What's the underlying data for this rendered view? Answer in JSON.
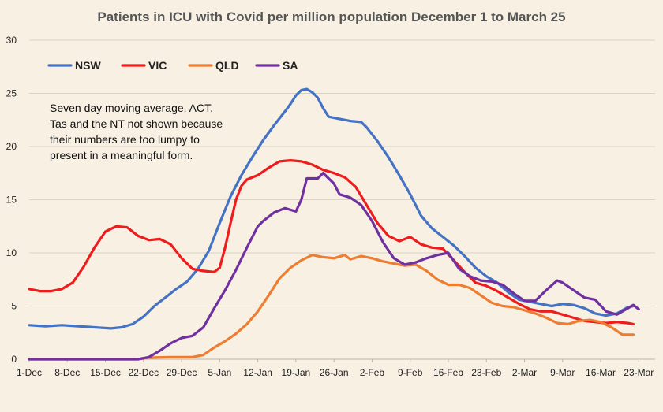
{
  "chart_data": {
    "type": "line",
    "title": "Patients in ICU with Covid per million population December 1  to March 25",
    "xlabel": "",
    "ylabel": "",
    "ylim": [
      0,
      30
    ],
    "yticks": [
      0,
      5,
      10,
      15,
      20,
      25,
      30
    ],
    "x_tick_labels": [
      "1-Dec",
      "8-Dec",
      "15-Dec",
      "22-Dec",
      "29-Dec",
      "5-Jan",
      "12-Jan",
      "19-Jan",
      "26-Jan",
      "2-Feb",
      "9-Feb",
      "16-Feb",
      "23-Feb",
      "2-Mar",
      "9-Mar",
      "16-Mar",
      "23-Mar"
    ],
    "x_range_days": [
      0,
      115
    ],
    "grid": "horizontal",
    "legend_position": "top-left",
    "annotation": [
      "Seven day moving average. ACT,",
      "Tas and the NT not shown because",
      "their numbers are too lumpy to",
      "present in a meaningful form."
    ],
    "series": [
      {
        "name": "NSW",
        "color": "#4472c4",
        "points": [
          [
            0,
            3.2
          ],
          [
            3,
            3.1
          ],
          [
            6,
            3.2
          ],
          [
            9,
            3.1
          ],
          [
            12,
            3.0
          ],
          [
            15,
            2.9
          ],
          [
            17,
            3.0
          ],
          [
            19,
            3.3
          ],
          [
            21,
            4.0
          ],
          [
            23,
            5.0
          ],
          [
            25,
            5.8
          ],
          [
            27,
            6.6
          ],
          [
            29,
            7.3
          ],
          [
            31,
            8.5
          ],
          [
            33,
            10.2
          ],
          [
            35,
            12.8
          ],
          [
            37,
            15.3
          ],
          [
            39,
            17.3
          ],
          [
            41,
            19.0
          ],
          [
            43,
            20.6
          ],
          [
            45,
            22.0
          ],
          [
            47,
            23.3
          ],
          [
            48,
            24.0
          ],
          [
            49,
            24.8
          ],
          [
            50,
            25.3
          ],
          [
            51,
            25.4
          ],
          [
            52,
            25.1
          ],
          [
            53,
            24.6
          ],
          [
            54,
            23.6
          ],
          [
            55,
            22.8
          ],
          [
            57,
            22.6
          ],
          [
            59,
            22.4
          ],
          [
            61,
            22.3
          ],
          [
            62,
            21.8
          ],
          [
            64,
            20.5
          ],
          [
            66,
            19.0
          ],
          [
            68,
            17.3
          ],
          [
            70,
            15.5
          ],
          [
            72,
            13.5
          ],
          [
            74,
            12.3
          ],
          [
            76,
            11.5
          ],
          [
            78,
            10.7
          ],
          [
            80,
            9.7
          ],
          [
            82,
            8.6
          ],
          [
            84,
            7.8
          ],
          [
            86,
            7.2
          ],
          [
            88,
            6.3
          ],
          [
            90,
            5.6
          ],
          [
            92,
            5.4
          ],
          [
            94,
            5.2
          ],
          [
            96,
            5.0
          ],
          [
            98,
            5.2
          ],
          [
            100,
            5.1
          ],
          [
            102,
            4.8
          ],
          [
            104,
            4.3
          ],
          [
            106,
            4.1
          ],
          [
            108,
            4.3
          ],
          [
            110,
            4.9
          ],
          [
            111,
            5.0
          ]
        ]
      },
      {
        "name": "VIC",
        "color": "#ee1c1c",
        "points": [
          [
            0,
            6.6
          ],
          [
            2,
            6.4
          ],
          [
            4,
            6.4
          ],
          [
            6,
            6.6
          ],
          [
            8,
            7.2
          ],
          [
            10,
            8.7
          ],
          [
            12,
            10.5
          ],
          [
            14,
            12.0
          ],
          [
            16,
            12.5
          ],
          [
            18,
            12.4
          ],
          [
            20,
            11.6
          ],
          [
            22,
            11.2
          ],
          [
            24,
            11.3
          ],
          [
            26,
            10.8
          ],
          [
            28,
            9.5
          ],
          [
            30,
            8.5
          ],
          [
            32,
            8.3
          ],
          [
            34,
            8.2
          ],
          [
            35,
            8.6
          ],
          [
            36,
            10.5
          ],
          [
            37,
            12.8
          ],
          [
            38,
            15.0
          ],
          [
            39,
            16.3
          ],
          [
            40,
            16.9
          ],
          [
            42,
            17.3
          ],
          [
            44,
            18.0
          ],
          [
            46,
            18.6
          ],
          [
            48,
            18.7
          ],
          [
            50,
            18.6
          ],
          [
            52,
            18.3
          ],
          [
            54,
            17.8
          ],
          [
            56,
            17.5
          ],
          [
            58,
            17.1
          ],
          [
            60,
            16.2
          ],
          [
            62,
            14.5
          ],
          [
            64,
            12.8
          ],
          [
            66,
            11.6
          ],
          [
            68,
            11.1
          ],
          [
            70,
            11.5
          ],
          [
            72,
            10.8
          ],
          [
            74,
            10.5
          ],
          [
            76,
            10.4
          ],
          [
            78,
            9.3
          ],
          [
            80,
            8.2
          ],
          [
            82,
            7.2
          ],
          [
            84,
            6.9
          ],
          [
            86,
            6.4
          ],
          [
            88,
            5.8
          ],
          [
            90,
            5.2
          ],
          [
            92,
            4.7
          ],
          [
            94,
            4.5
          ],
          [
            96,
            4.5
          ],
          [
            98,
            4.2
          ],
          [
            100,
            3.9
          ],
          [
            102,
            3.6
          ],
          [
            104,
            3.5
          ],
          [
            106,
            3.4
          ],
          [
            108,
            3.5
          ],
          [
            110,
            3.4
          ],
          [
            111,
            3.3
          ]
        ]
      },
      {
        "name": "QLD",
        "color": "#ed7d31",
        "points": [
          [
            0,
            0.0
          ],
          [
            20,
            0.0
          ],
          [
            22,
            0.15
          ],
          [
            26,
            0.2
          ],
          [
            30,
            0.2
          ],
          [
            32,
            0.4
          ],
          [
            34,
            1.1
          ],
          [
            36,
            1.7
          ],
          [
            38,
            2.4
          ],
          [
            40,
            3.3
          ],
          [
            42,
            4.5
          ],
          [
            44,
            6.0
          ],
          [
            46,
            7.6
          ],
          [
            48,
            8.6
          ],
          [
            50,
            9.3
          ],
          [
            52,
            9.8
          ],
          [
            54,
            9.6
          ],
          [
            56,
            9.5
          ],
          [
            58,
            9.8
          ],
          [
            59,
            9.4
          ],
          [
            61,
            9.7
          ],
          [
            63,
            9.5
          ],
          [
            65,
            9.2
          ],
          [
            67,
            9.0
          ],
          [
            69,
            8.8
          ],
          [
            71,
            8.9
          ],
          [
            73,
            8.3
          ],
          [
            75,
            7.5
          ],
          [
            77,
            7.0
          ],
          [
            79,
            7.0
          ],
          [
            81,
            6.7
          ],
          [
            83,
            6.0
          ],
          [
            85,
            5.3
          ],
          [
            87,
            5.0
          ],
          [
            89,
            4.9
          ],
          [
            91,
            4.6
          ],
          [
            93,
            4.3
          ],
          [
            95,
            3.9
          ],
          [
            97,
            3.4
          ],
          [
            99,
            3.3
          ],
          [
            101,
            3.6
          ],
          [
            103,
            3.7
          ],
          [
            105,
            3.5
          ],
          [
            107,
            3.0
          ],
          [
            109,
            2.3
          ],
          [
            111,
            2.3
          ]
        ]
      },
      {
        "name": "SA",
        "color": "#7030a0",
        "points": [
          [
            0,
            0.0
          ],
          [
            20,
            0.0
          ],
          [
            22,
            0.2
          ],
          [
            24,
            0.8
          ],
          [
            26,
            1.5
          ],
          [
            28,
            2.0
          ],
          [
            30,
            2.2
          ],
          [
            32,
            3.0
          ],
          [
            34,
            4.8
          ],
          [
            36,
            6.5
          ],
          [
            38,
            8.4
          ],
          [
            40,
            10.5
          ],
          [
            42,
            12.5
          ],
          [
            43,
            13.0
          ],
          [
            45,
            13.8
          ],
          [
            47,
            14.2
          ],
          [
            49,
            13.9
          ],
          [
            50,
            15.0
          ],
          [
            51,
            17.0
          ],
          [
            53,
            17.0
          ],
          [
            54,
            17.5
          ],
          [
            56,
            16.5
          ],
          [
            57,
            15.5
          ],
          [
            59,
            15.2
          ],
          [
            61,
            14.5
          ],
          [
            63,
            13.0
          ],
          [
            65,
            11.0
          ],
          [
            67,
            9.5
          ],
          [
            69,
            8.9
          ],
          [
            71,
            9.1
          ],
          [
            73,
            9.5
          ],
          [
            75,
            9.8
          ],
          [
            77,
            10.0
          ],
          [
            79,
            8.5
          ],
          [
            81,
            7.8
          ],
          [
            83,
            7.4
          ],
          [
            85,
            7.3
          ],
          [
            87,
            7.0
          ],
          [
            89,
            6.2
          ],
          [
            91,
            5.5
          ],
          [
            93,
            5.5
          ],
          [
            95,
            6.5
          ],
          [
            97,
            7.4
          ],
          [
            98,
            7.2
          ],
          [
            100,
            6.5
          ],
          [
            102,
            5.8
          ],
          [
            104,
            5.6
          ],
          [
            106,
            4.5
          ],
          [
            108,
            4.2
          ],
          [
            110,
            4.8
          ],
          [
            111,
            5.1
          ],
          [
            112,
            4.7
          ]
        ]
      }
    ]
  }
}
